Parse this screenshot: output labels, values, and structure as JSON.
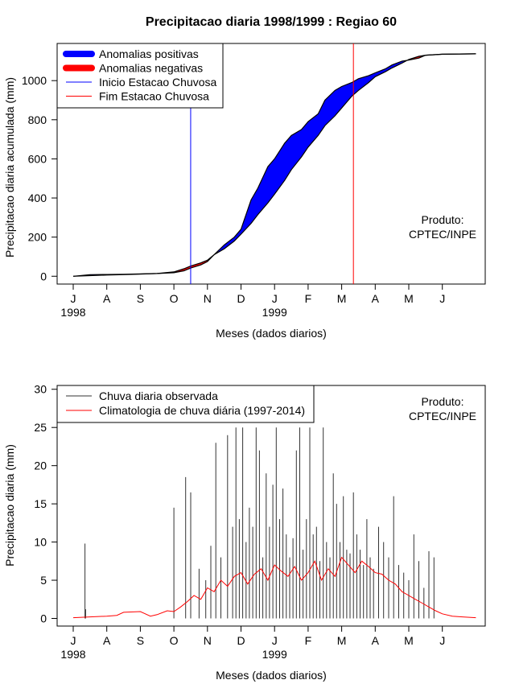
{
  "chart_data": [
    {
      "type": "area",
      "title": "Precipitacao diaria 1998/1999 : Regiao 60",
      "xlabel": "Meses (dados diarios)",
      "ylabel": "Precipitacao diaria acumulada (mm)",
      "ylim": [
        -40,
        1190
      ],
      "yticks": [
        0,
        200,
        400,
        600,
        800,
        1000
      ],
      "month_ticks": [
        "J",
        "A",
        "S",
        "O",
        "N",
        "D",
        "J",
        "F",
        "M",
        "A",
        "M",
        "J"
      ],
      "year_labels": [
        {
          "label": "1998",
          "month_index": 0
        },
        {
          "label": "1999",
          "month_index": 6
        }
      ],
      "xlim_months": [
        -0.27,
        12.4
      ],
      "legend": {
        "position": "top-left",
        "items": [
          {
            "label": "Anomalias positivas",
            "color": "#0000ff",
            "kind": "thick"
          },
          {
            "label": "Anomalias negativas",
            "color": "#ff0000",
            "kind": "thick"
          },
          {
            "label": "Inicio Estacao Chuvosa",
            "color": "#0000ff",
            "kind": "thin"
          },
          {
            "label": "Fim Estacao Chuvosa",
            "color": "#ff0000",
            "kind": "thin"
          }
        ]
      },
      "annotation": [
        "Produto:",
        "CPTEC/INPE"
      ],
      "onset_month": 3.5,
      "end_month": 8.35,
      "observed": {
        "name": "Acumulado observado",
        "x": [
          0,
          0.5,
          1,
          1.5,
          2,
          2.5,
          3,
          3.3,
          3.5,
          3.8,
          4,
          4.2,
          4.5,
          4.8,
          5,
          5.3,
          5.5,
          5.8,
          6,
          6.3,
          6.5,
          6.8,
          7,
          7.3,
          7.5,
          7.8,
          8,
          8.3,
          8.5,
          8.8,
          9,
          9.3,
          9.5,
          9.8,
          10,
          10.3,
          10.5,
          10.8,
          11,
          11.5,
          12
        ],
        "values": [
          0,
          8,
          9,
          10,
          12,
          14,
          18,
          28,
          42,
          58,
          75,
          110,
          160,
          200,
          240,
          390,
          450,
          560,
          600,
          680,
          720,
          750,
          790,
          830,
          900,
          950,
          970,
          990,
          1010,
          1025,
          1040,
          1060,
          1080,
          1100,
          1105,
          1115,
          1130,
          1133,
          1135,
          1136,
          1137
        ]
      },
      "climatology": {
        "name": "Acumulado climatologia",
        "x": [
          0,
          0.5,
          1,
          1.5,
          2,
          2.5,
          3,
          3.3,
          3.5,
          3.8,
          4,
          4.2,
          4.5,
          4.8,
          5,
          5.3,
          5.5,
          5.8,
          6,
          6.3,
          6.5,
          6.8,
          7,
          7.3,
          7.5,
          7.8,
          8,
          8.3,
          8.5,
          8.8,
          9,
          9.3,
          9.5,
          9.8,
          10,
          10.3,
          10.5,
          10.8,
          11,
          11.5,
          12
        ],
        "values": [
          0,
          3,
          6,
          8,
          11,
          14,
          22,
          38,
          52,
          68,
          82,
          110,
          140,
          180,
          215,
          270,
          315,
          375,
          420,
          490,
          545,
          610,
          660,
          720,
          770,
          820,
          860,
          920,
          950,
          990,
          1020,
          1045,
          1065,
          1090,
          1108,
          1124,
          1130,
          1133,
          1135,
          1136,
          1137
        ]
      }
    },
    {
      "type": "bar",
      "title": "",
      "xlabel": "Meses (dados diarios)",
      "ylabel": "Precipitacao diaria (mm)",
      "ylim": [
        -1,
        30.5
      ],
      "yticks": [
        0,
        5,
        10,
        15,
        20,
        25,
        30
      ],
      "month_ticks": [
        "J",
        "A",
        "S",
        "O",
        "N",
        "D",
        "J",
        "F",
        "M",
        "A",
        "M",
        "J"
      ],
      "year_labels": [
        {
          "label": "1998",
          "month_index": 0
        },
        {
          "label": "1999",
          "month_index": 6
        }
      ],
      "xlim_months": [
        -0.27,
        12.4
      ],
      "legend": {
        "position": "top-left",
        "items": [
          {
            "label": "Chuva diaria observada",
            "color": "#333333",
            "kind": "thin"
          },
          {
            "label": "Climatologia de chuva diária (1997-2014)",
            "color": "#ff0000",
            "kind": "thin"
          }
        ]
      },
      "annotation": [
        "Produto:",
        "CPTEC/INPE"
      ],
      "observed_spikes": {
        "name": "Chuva diaria observada",
        "x": [
          0.35,
          0.37,
          3.0,
          3.35,
          3.5,
          3.75,
          3.95,
          4.1,
          4.25,
          4.4,
          4.6,
          4.75,
          4.85,
          4.95,
          5.05,
          5.15,
          5.25,
          5.35,
          5.45,
          5.55,
          5.65,
          5.75,
          5.85,
          5.95,
          6.05,
          6.15,
          6.25,
          6.35,
          6.45,
          6.55,
          6.65,
          6.75,
          6.85,
          6.95,
          7.05,
          7.15,
          7.25,
          7.35,
          7.45,
          7.55,
          7.65,
          7.75,
          7.85,
          7.95,
          8.05,
          8.15,
          8.25,
          8.35,
          8.45,
          8.55,
          8.65,
          8.75,
          8.85,
          8.95,
          9.1,
          9.25,
          9.4,
          9.55,
          9.7,
          9.85,
          10.0,
          10.15,
          10.3,
          10.45,
          10.6,
          10.75
        ],
        "values": [
          9.8,
          1.2,
          14.5,
          18.5,
          16.5,
          6.5,
          5,
          9.5,
          23,
          8,
          24,
          12,
          25,
          13,
          25,
          10,
          14.5,
          12,
          25,
          22,
          8,
          19,
          12,
          17.5,
          25,
          13,
          17,
          11,
          8,
          10.5,
          22,
          25,
          9,
          13,
          25,
          11,
          12,
          7.5,
          25,
          10,
          8,
          19,
          15,
          10,
          16,
          9,
          8.5,
          16.5,
          11,
          9,
          7,
          13,
          8,
          6.5,
          12,
          10,
          8,
          16,
          7,
          6,
          5,
          11,
          7.5,
          4,
          8.8,
          8
        ]
      },
      "climatology": {
        "name": "Climatologia de chuva diária (1997-2014)",
        "x": [
          0,
          0.5,
          1,
          1.3,
          1.5,
          2,
          2.3,
          2.5,
          2.8,
          3,
          3.2,
          3.4,
          3.6,
          3.8,
          4,
          4.2,
          4.4,
          4.6,
          4.8,
          5,
          5.2,
          5.4,
          5.6,
          5.8,
          6,
          6.2,
          6.4,
          6.6,
          6.8,
          7,
          7.2,
          7.4,
          7.6,
          7.8,
          8,
          8.2,
          8.4,
          8.6,
          8.8,
          9,
          9.2,
          9.4,
          9.6,
          9.8,
          10,
          10.2,
          10.4,
          10.6,
          10.8,
          11,
          11.3,
          11.6,
          12
        ],
        "values": [
          0.1,
          0.2,
          0.3,
          0.4,
          0.8,
          0.9,
          0.3,
          0.5,
          1.0,
          0.9,
          1.5,
          2.2,
          3.0,
          2.5,
          4.0,
          3.5,
          5.0,
          4.2,
          5.5,
          6.0,
          4.5,
          5.8,
          6.5,
          5.0,
          7.0,
          6.2,
          5.5,
          6.8,
          5.0,
          6.0,
          7.5,
          5.0,
          6.5,
          5.5,
          8.0,
          7.0,
          6.0,
          7.5,
          6.8,
          6.0,
          5.8,
          5.0,
          4.5,
          3.5,
          3.0,
          2.5,
          2.0,
          1.5,
          1.0,
          0.6,
          0.3,
          0.2,
          0.1
        ]
      }
    }
  ]
}
